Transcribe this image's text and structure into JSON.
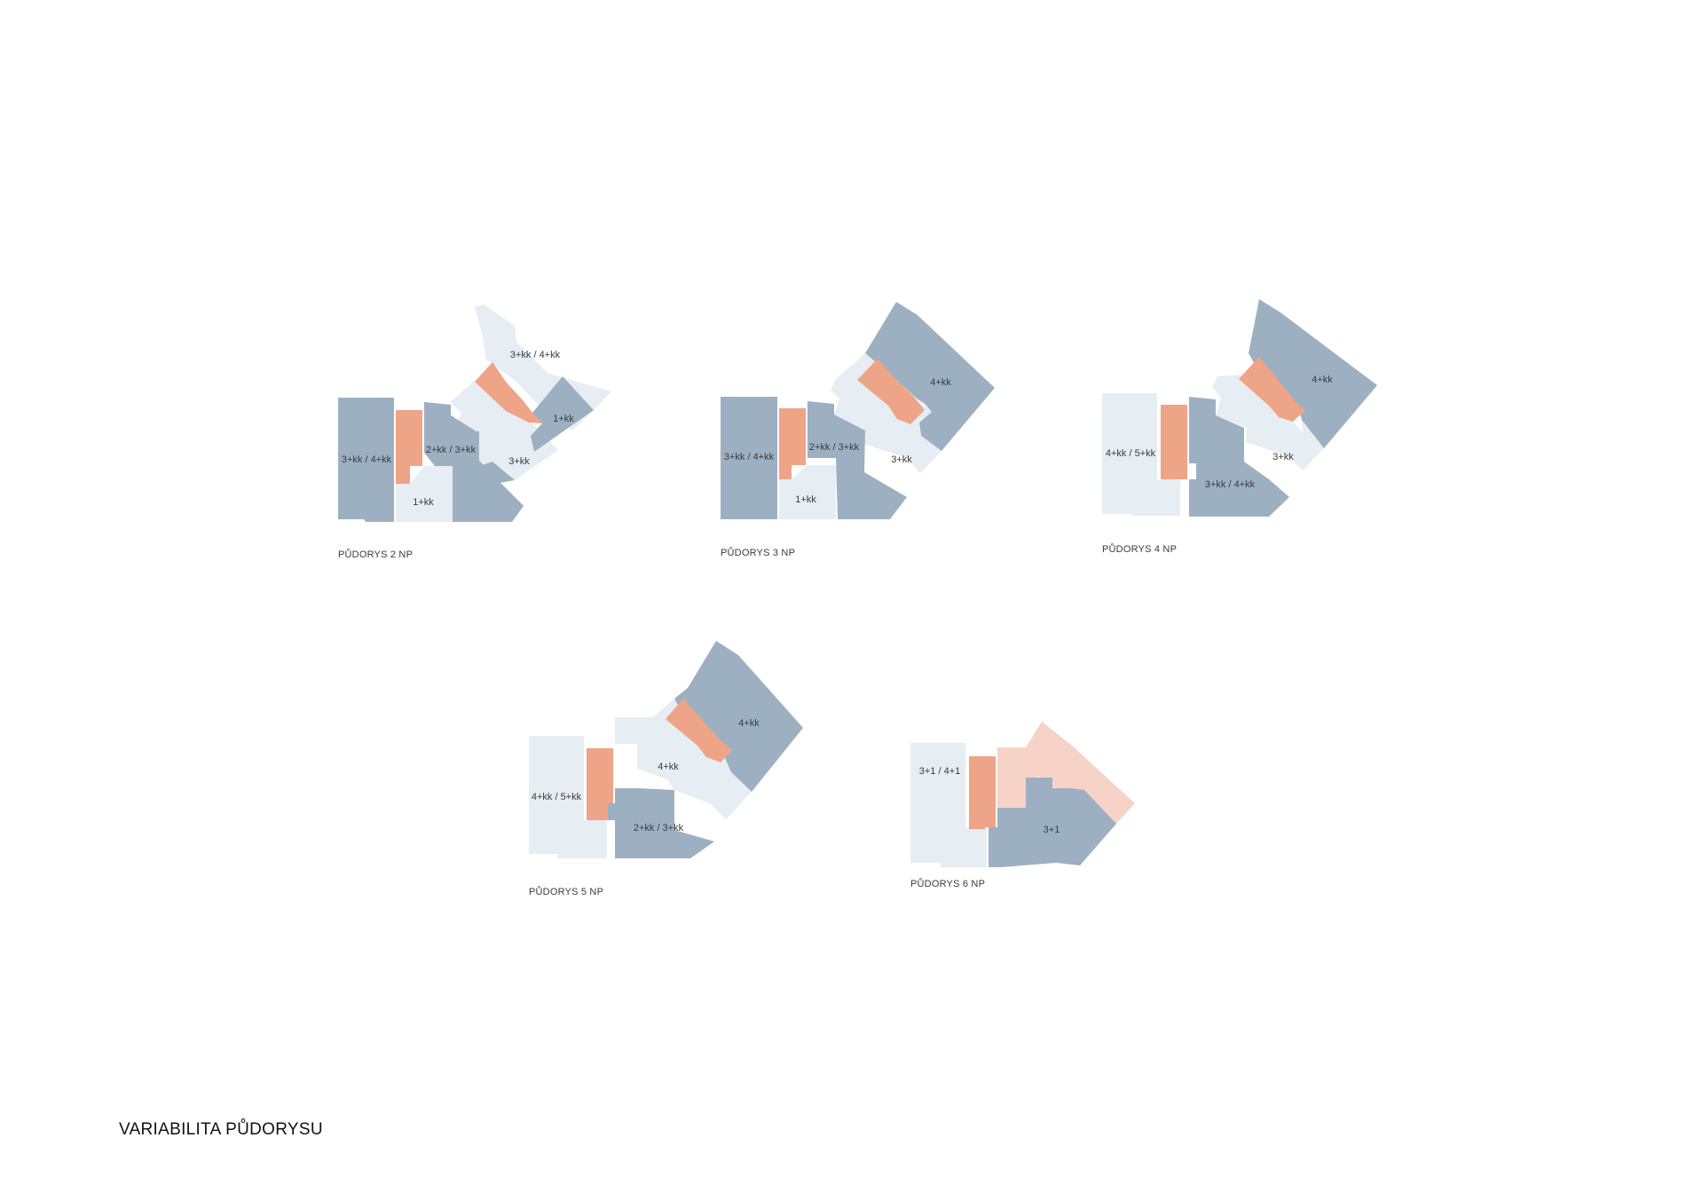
{
  "title": "VARIABILITA PŮDORYSU",
  "colors": {
    "dark_unit": "#9db0c2",
    "light_unit": "#e6edf3",
    "core": "#eea486",
    "light_core_unit": "#f6d3c6",
    "text": "#3a3a3a"
  },
  "plans": [
    {
      "caption": "PŮDORYS 2 NP",
      "units": [
        "3+kk / 4+kk",
        "2+kk / 3+kk",
        "1+kk",
        "3+kk / 4+kk",
        "1+kk",
        "3+kk"
      ]
    },
    {
      "caption": "PŮDORYS 3 NP",
      "units": [
        "3+kk / 4+kk",
        "2+kk / 3+kk",
        "1+kk",
        "4+kk",
        "3+kk"
      ]
    },
    {
      "caption": "PŮDORYS 4 NP",
      "units": [
        "4+kk / 5+kk",
        "3+kk / 4+kk",
        "4+kk",
        "3+kk"
      ]
    },
    {
      "caption": "PŮDORYS 5 NP",
      "units": [
        "4+kk / 5+kk",
        "2+kk / 3+kk",
        "4+kk",
        "4+kk"
      ]
    },
    {
      "caption": "PŮDORYS 6 NP",
      "units": [
        "3+1 / 4+1",
        "3+1"
      ]
    }
  ]
}
